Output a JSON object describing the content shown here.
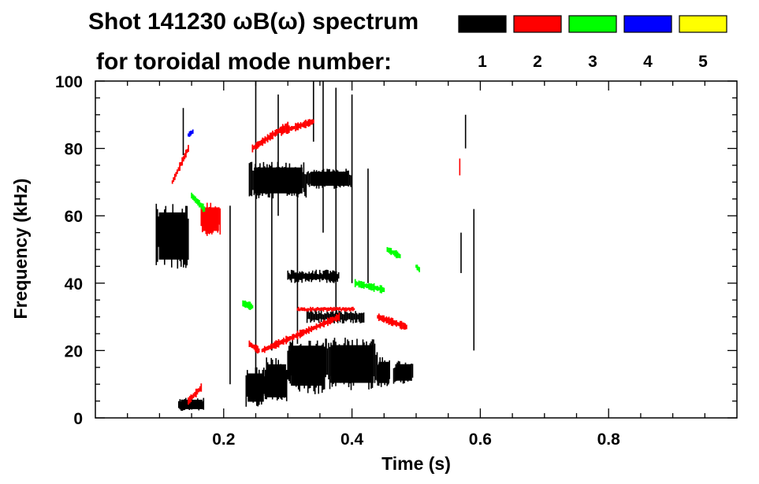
{
  "chart_data": {
    "type": "heatmap",
    "title_line1": "Shot 141230 ωB(ω) spectrum",
    "title_line2": "for toroidal mode number:",
    "xlabel": "Time (s)",
    "ylabel": "Frequency (kHz)",
    "xlim": [
      0.0,
      1.0
    ],
    "ylim": [
      0,
      100
    ],
    "x_ticks": [
      0.2,
      0.4,
      0.6,
      0.8
    ],
    "x_tick_labels": [
      "0.2",
      "0.4",
      "0.6",
      "0.8"
    ],
    "y_ticks": [
      0,
      20,
      40,
      60,
      80,
      100
    ],
    "y_tick_labels": [
      "0",
      "20",
      "40",
      "60",
      "80",
      "100"
    ],
    "legend": [
      {
        "label": "1",
        "color": "#000000"
      },
      {
        "label": "2",
        "color": "#ff0000"
      },
      {
        "label": "3",
        "color": "#00ff00"
      },
      {
        "label": "4",
        "color": "#0000ff"
      },
      {
        "label": "5",
        "color": "#ffff00"
      }
    ],
    "spectral_features": [
      {
        "mode": "1",
        "kind": "blob",
        "t": [
          0.095,
          0.145
        ],
        "f": [
          44,
          64
        ]
      },
      {
        "mode": "1",
        "kind": "blob",
        "t": [
          0.235,
          0.265
        ],
        "f": [
          3,
          15
        ]
      },
      {
        "mode": "1",
        "kind": "blob",
        "t": [
          0.265,
          0.3
        ],
        "f": [
          4,
          18
        ]
      },
      {
        "mode": "1",
        "kind": "blob",
        "t": [
          0.3,
          0.36
        ],
        "f": [
          7,
          24
        ]
      },
      {
        "mode": "1",
        "kind": "blob",
        "t": [
          0.36,
          0.44
        ],
        "f": [
          8,
          24
        ]
      },
      {
        "mode": "1",
        "kind": "blob",
        "t": [
          0.44,
          0.46
        ],
        "f": [
          9,
          18
        ]
      },
      {
        "mode": "1",
        "kind": "blob",
        "t": [
          0.465,
          0.495
        ],
        "f": [
          10,
          17
        ]
      },
      {
        "mode": "1",
        "kind": "blob",
        "t": [
          0.24,
          0.33
        ],
        "f": [
          65,
          76
        ]
      },
      {
        "mode": "1",
        "kind": "blob",
        "t": [
          0.33,
          0.4
        ],
        "f": [
          68,
          74
        ]
      },
      {
        "mode": "1",
        "kind": "blob",
        "t": [
          0.13,
          0.17
        ],
        "f": [
          2,
          6
        ]
      },
      {
        "mode": "1",
        "kind": "band",
        "t": [
          0.33,
          0.42
        ],
        "f": [
          28,
          32
        ]
      },
      {
        "mode": "1",
        "kind": "band",
        "t": [
          0.3,
          0.38
        ],
        "f": [
          40,
          44
        ]
      },
      {
        "mode": "1",
        "kind": "line",
        "t": [
          0.137,
          0.137
        ],
        "f": [
          92,
          78
        ]
      },
      {
        "mode": "1",
        "kind": "line",
        "t": [
          0.21,
          0.21
        ],
        "f": [
          63,
          10
        ]
      },
      {
        "mode": "1",
        "kind": "line",
        "t": [
          0.25,
          0.25
        ],
        "f": [
          100,
          14
        ]
      },
      {
        "mode": "1",
        "kind": "line",
        "t": [
          0.275,
          0.275
        ],
        "f": [
          75,
          20
        ]
      },
      {
        "mode": "1",
        "kind": "line",
        "t": [
          0.285,
          0.285
        ],
        "f": [
          96,
          60
        ]
      },
      {
        "mode": "1",
        "kind": "line",
        "t": [
          0.315,
          0.315
        ],
        "f": [
          70,
          22
        ]
      },
      {
        "mode": "1",
        "kind": "line",
        "t": [
          0.34,
          0.34
        ],
        "f": [
          100,
          82
        ]
      },
      {
        "mode": "1",
        "kind": "line",
        "t": [
          0.355,
          0.355
        ],
        "f": [
          100,
          55
        ]
      },
      {
        "mode": "1",
        "kind": "line",
        "t": [
          0.375,
          0.375
        ],
        "f": [
          98,
          30
        ]
      },
      {
        "mode": "1",
        "kind": "line",
        "t": [
          0.4,
          0.4
        ],
        "f": [
          96,
          40
        ]
      },
      {
        "mode": "1",
        "kind": "line",
        "t": [
          0.425,
          0.425
        ],
        "f": [
          74,
          40
        ]
      },
      {
        "mode": "1",
        "kind": "line",
        "t": [
          0.57,
          0.57
        ],
        "f": [
          55,
          43
        ]
      },
      {
        "mode": "1",
        "kind": "line",
        "t": [
          0.577,
          0.577
        ],
        "f": [
          90,
          80
        ]
      },
      {
        "mode": "1",
        "kind": "line",
        "t": [
          0.59,
          0.59
        ],
        "f": [
          62,
          20
        ]
      },
      {
        "mode": "2",
        "kind": "chirp",
        "t": [
          0.12,
          0.145
        ],
        "f": [
          70,
          80
        ]
      },
      {
        "mode": "2",
        "kind": "blob",
        "t": [
          0.165,
          0.195
        ],
        "f": [
          54,
          64
        ]
      },
      {
        "mode": "2",
        "kind": "chirp",
        "t": [
          0.245,
          0.3
        ],
        "f": [
          80,
          87
        ]
      },
      {
        "mode": "2",
        "kind": "chirp",
        "t": [
          0.29,
          0.34
        ],
        "f": [
          85,
          88
        ]
      },
      {
        "mode": "2",
        "kind": "chirp",
        "t": [
          0.24,
          0.255
        ],
        "f": [
          22,
          20
        ]
      },
      {
        "mode": "2",
        "kind": "band",
        "t": [
          0.315,
          0.405
        ],
        "f": [
          31.5,
          33
        ]
      },
      {
        "mode": "2",
        "kind": "chirp",
        "t": [
          0.26,
          0.38
        ],
        "f": [
          20,
          30
        ]
      },
      {
        "mode": "2",
        "kind": "chirp",
        "t": [
          0.44,
          0.485
        ],
        "f": [
          30,
          27
        ]
      },
      {
        "mode": "2",
        "kind": "chirp",
        "t": [
          0.145,
          0.165
        ],
        "f": [
          5,
          9
        ]
      },
      {
        "mode": "2",
        "kind": "line",
        "t": [
          0.568,
          0.568
        ],
        "f": [
          77,
          72
        ]
      },
      {
        "mode": "3",
        "kind": "chirp",
        "t": [
          0.15,
          0.17
        ],
        "f": [
          66,
          62
        ]
      },
      {
        "mode": "3",
        "kind": "chirp",
        "t": [
          0.405,
          0.45
        ],
        "f": [
          40,
          38
        ]
      },
      {
        "mode": "3",
        "kind": "chirp",
        "t": [
          0.23,
          0.245
        ],
        "f": [
          34,
          33
        ]
      },
      {
        "mode": "3",
        "kind": "chirp",
        "t": [
          0.455,
          0.475
        ],
        "f": [
          50,
          48
        ]
      },
      {
        "mode": "3",
        "kind": "chirp",
        "t": [
          0.5,
          0.505
        ],
        "f": [
          45,
          44
        ]
      },
      {
        "mode": "4",
        "kind": "chirp",
        "t": [
          0.145,
          0.152
        ],
        "f": [
          84,
          85
        ]
      }
    ]
  }
}
